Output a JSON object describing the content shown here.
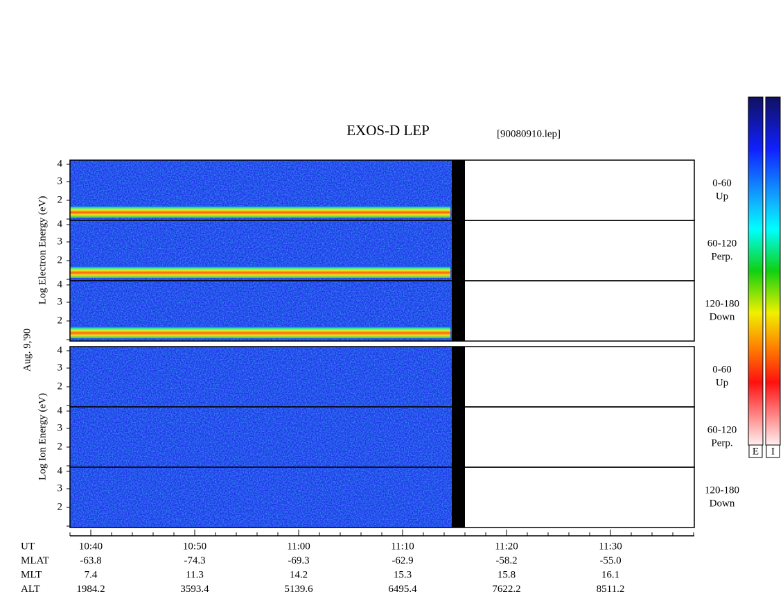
{
  "header": {
    "title": "EXOS-D LEP",
    "file": "[90080910.lep]"
  },
  "date": "Aug. 9,'90",
  "electron": {
    "axis_label": "Log Electron Energy (eV)",
    "panels": [
      {
        "angle": "0-60",
        "direction": "Up"
      },
      {
        "angle": "60-120",
        "direction": "Perp."
      },
      {
        "angle": "120-180",
        "direction": "Down"
      }
    ],
    "yticks": [
      "4",
      "3",
      "2"
    ]
  },
  "ion": {
    "axis_label": "Log Ion Energy (eV)",
    "panels": [
      {
        "angle": "0-60",
        "direction": "Up"
      },
      {
        "angle": "60-120",
        "direction": "Perp."
      },
      {
        "angle": "120-180",
        "direction": "Down"
      }
    ],
    "yticks": [
      "4",
      "3",
      "2"
    ]
  },
  "time_axis": {
    "rows": [
      {
        "label": "UT",
        "values": [
          "10:40",
          "10:50",
          "11:00",
          "11:10",
          "11:20",
          "11:30"
        ]
      },
      {
        "label": "MLAT",
        "values": [
          "-63.8",
          "-74.3",
          "-69.3",
          "-62.9",
          "-58.2",
          "-55.0"
        ]
      },
      {
        "label": "MLT",
        "values": [
          "7.4",
          "11.3",
          "14.2",
          "15.3",
          "15.8",
          "16.1"
        ]
      },
      {
        "label": "ALT",
        "values": [
          "1984.2",
          "3593.4",
          "5139.6",
          "6495.4",
          "7622.2",
          "8511.2"
        ]
      }
    ]
  },
  "colorbars": [
    "E",
    "I"
  ]
}
